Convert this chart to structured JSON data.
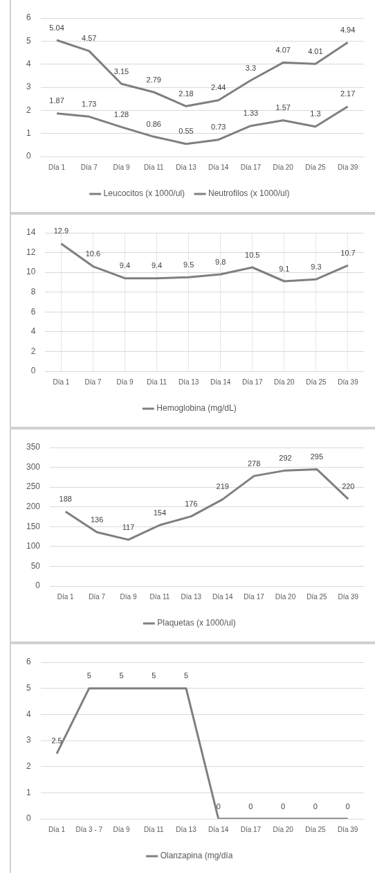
{
  "chart_data": [
    {
      "type": "line",
      "categories": [
        "Día 1",
        "Día 7",
        "Día 9",
        "Día 11",
        "Día 13",
        "Día 14",
        "Día 17",
        "Día 20",
        "Día 25",
        "Día 39"
      ],
      "series": [
        {
          "name": "Leucocitos (x 1000/ul)",
          "color": "#7f7f7f",
          "values": [
            5.04,
            4.57,
            3.15,
            2.79,
            2.18,
            2.44,
            3.3,
            4.07,
            4.01,
            4.94
          ]
        },
        {
          "name": "Neutrofilos (x 1000/ul)",
          "color": "#7f7f7f",
          "values": [
            1.87,
            1.73,
            1.28,
            0.86,
            0.55,
            0.73,
            1.33,
            1.57,
            1.3,
            2.17
          ]
        }
      ],
      "ylim": [
        0,
        6
      ],
      "yticks": [
        0,
        1,
        2,
        3,
        4,
        5,
        6
      ],
      "grid": "y",
      "legend": "bottom",
      "data_labels": true,
      "marker": "none"
    },
    {
      "type": "line",
      "categories": [
        "Día 1",
        "Día 7",
        "Día 9",
        "Día 11",
        "Día 13",
        "Día 14",
        "Día 17",
        "Día 20",
        "Día 25",
        "Día 39"
      ],
      "series": [
        {
          "name": "Hemoglobina (mg/dL)",
          "color": "#7f7f7f",
          "values": [
            12.9,
            10.6,
            9.4,
            9.4,
            9.5,
            9.8,
            10.5,
            9.1,
            9.3,
            10.7
          ]
        }
      ],
      "ylim": [
        0,
        14
      ],
      "yticks": [
        0,
        2,
        4,
        6,
        8,
        10,
        12,
        14
      ],
      "grid": true,
      "legend": "bottom",
      "data_labels": true,
      "marker": "none"
    },
    {
      "type": "line",
      "categories": [
        "Día 1",
        "Día 7",
        "Día 9",
        "Día 11",
        "Día 13",
        "Día 14",
        "Día 17",
        "Día 20",
        "Día 25",
        "Día 39"
      ],
      "series": [
        {
          "name": "Plaquetas (x 1000/ul)",
          "color": "#7f7f7f",
          "values": [
            188,
            136,
            117,
            154,
            176,
            219,
            278,
            292,
            295,
            220
          ]
        }
      ],
      "ylim": [
        0,
        350
      ],
      "yticks": [
        0,
        50,
        100,
        150,
        200,
        250,
        300,
        350
      ],
      "grid": "y",
      "legend": "bottom",
      "data_labels": true,
      "marker": "none"
    },
    {
      "type": "line",
      "categories": [
        "Día 1",
        "Día 3 - 7",
        "Día 9",
        "Día 11",
        "Día 13",
        "Día 14",
        "Día 17",
        "Día 20",
        "Día 25",
        "Día 39"
      ],
      "series": [
        {
          "name": "Olanzapina (mg/día",
          "color": "#7f7f7f",
          "values": [
            2.5,
            5,
            5,
            5,
            5,
            0,
            0,
            0,
            0,
            0
          ]
        }
      ],
      "ylim": [
        0,
        6
      ],
      "yticks": [
        0,
        1,
        2,
        3,
        4,
        5,
        6
      ],
      "grid": "y",
      "legend": "bottom",
      "data_labels": true,
      "marker": "none"
    }
  ]
}
